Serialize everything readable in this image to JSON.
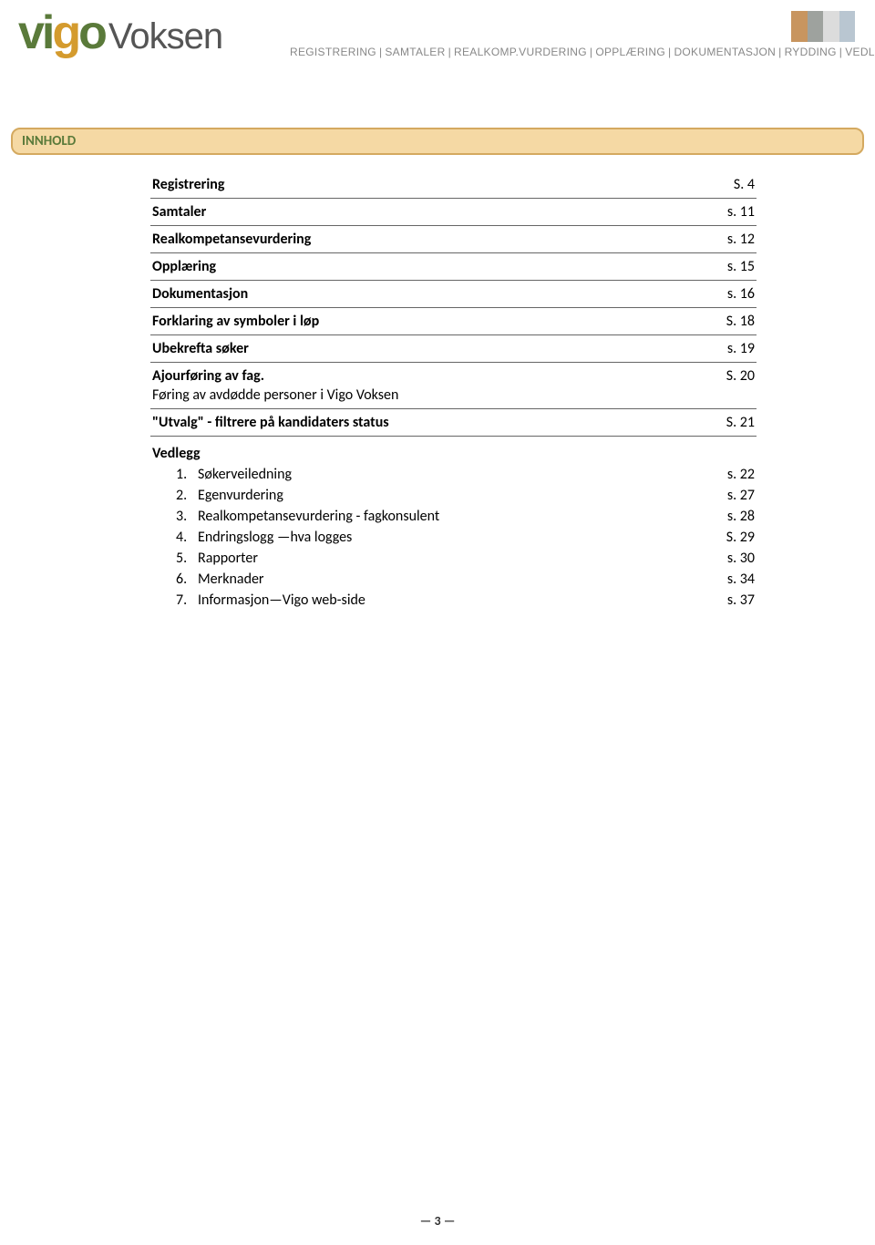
{
  "logo": {
    "v": "v",
    "i": "i",
    "g": "g",
    "o": "o",
    "voksen": "Voksen"
  },
  "nav": {
    "items": [
      "REGISTRERING",
      "SAMTALER",
      "REALKOMP.VURDERING",
      "OPPLÆRING",
      "DOKUMENTASJON",
      "RYDDING",
      "VEDL."
    ]
  },
  "section_title": "INNHOLD",
  "toc": [
    {
      "label": "Registrering",
      "sub": null,
      "page": "S.  4"
    },
    {
      "label": "Samtaler",
      "sub": null,
      "page": "s. 11"
    },
    {
      "label": "Realkompetansevurdering",
      "sub": null,
      "page": "s. 12"
    },
    {
      "label": "Opplæring",
      "sub": null,
      "page": "s. 15"
    },
    {
      "label": "Dokumentasjon",
      "sub": null,
      "page": "s. 16"
    },
    {
      "label": "Forklaring av symboler i løp",
      "sub": null,
      "page": "S. 18"
    },
    {
      "label": "Ubekrefta søker",
      "sub": null,
      "page": "s. 19"
    },
    {
      "label": "Ajourføring av fag.",
      "sub": "Føring av avdødde personer i Vigo Voksen",
      "page": "S. 20"
    },
    {
      "label": "\"Utvalg\"  - filtrere på kandidaters status",
      "sub": null,
      "page": "S. 21"
    }
  ],
  "vedlegg": {
    "title": "Vedlegg",
    "items": [
      {
        "num": "1.",
        "text": "Søkerveiledning",
        "page": "s. 22"
      },
      {
        "num": "2.",
        "text": "Egenvurdering",
        "page": "s. 27"
      },
      {
        "num": "3.",
        "text": "Realkompetansevurdering - fagkonsulent",
        "page": "s. 28"
      },
      {
        "num": "4.",
        "text": "Endringslogg —hva logges",
        "page": "S. 29"
      },
      {
        "num": "5.",
        "text": "Rapporter",
        "page": "s. 30"
      },
      {
        "num": "6.",
        "text": "Merknader",
        "page": "s. 34"
      },
      {
        "num": "7.",
        "text": "Informasjon—Vigo web-side",
        "page": "s. 37"
      }
    ]
  },
  "page_number": "— 3 —"
}
